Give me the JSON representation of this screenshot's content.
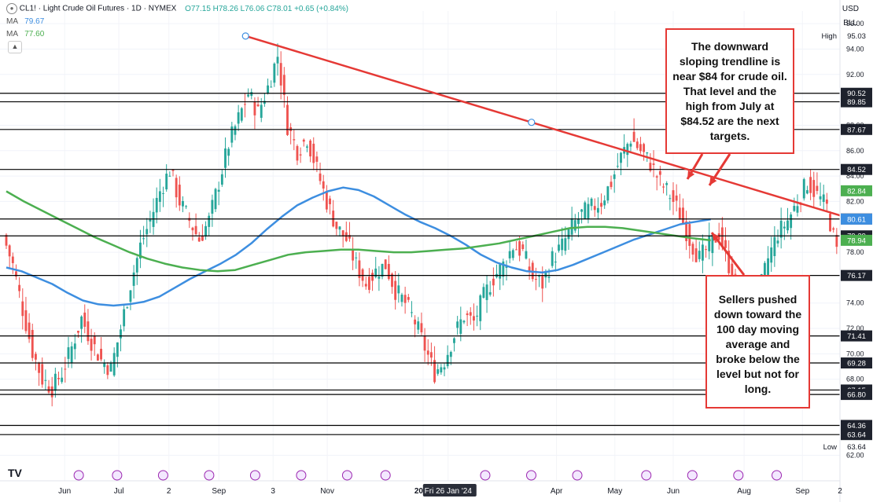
{
  "header": {
    "symbol": "CL1! · Light Crude Oil Futures · 1D · NYMEX",
    "ohlc": "O77.15 H78.26 L76.06 C78.01 +0.65 (+0.84%)",
    "ma1_label": "MA",
    "ma1_value": "79.67",
    "ma2_label": "MA",
    "ma2_value": "77.60"
  },
  "currency": "USD",
  "unit": "BLL",
  "collapse_icon": "chevron-up-icon",
  "colors": {
    "up": "#26a69a",
    "down": "#ef5350",
    "ma100": "#3d8ee0",
    "ma200": "#4caf50",
    "trendline": "#e53935",
    "level": "#000000"
  },
  "chart_data": {
    "type": "line",
    "ylim": [
      60,
      97
    ],
    "y_ticks": [
      "96.00",
      "94.00",
      "92.00",
      "88.00",
      "86.00",
      "84.00",
      "82.00",
      "78.00",
      "74.00",
      "72.00",
      "70.00",
      "68.00",
      "62.00"
    ],
    "x_ticks": [
      "Jun",
      "Jul",
      "2",
      "Sep",
      "3",
      "Nov",
      "2024",
      "Fri 26 Jan '24",
      "Apr",
      "May",
      "Jun",
      "Aug",
      "Sep",
      "2"
    ],
    "high_label": "High",
    "high_value": "95.03",
    "low_label": "Low",
    "low_value": "63.64",
    "levels": [
      {
        "label": "90.52",
        "value": 90.52,
        "box": "#1e222d"
      },
      {
        "label": "89.85",
        "value": 89.85,
        "box": "#1e222d"
      },
      {
        "label": "87.67",
        "value": 87.67,
        "box": "#1e222d"
      },
      {
        "label": "84.52",
        "value": 84.52,
        "box": "#1e222d"
      },
      {
        "label": "80.62",
        "value": 80.62,
        "box": "#1e222d"
      },
      {
        "label": "79.29",
        "value": 79.29,
        "box": "#1e222d"
      },
      {
        "label": "76.17",
        "value": 76.17,
        "box": "#1e222d"
      },
      {
        "label": "71.41",
        "value": 71.41,
        "box": "#1e222d"
      },
      {
        "label": "69.28",
        "value": 69.28,
        "box": "#1e222d"
      },
      {
        "label": "67.15",
        "value": 67.15,
        "box": "#1e222d"
      },
      {
        "label": "66.80",
        "value": 66.8,
        "box": "#1e222d"
      },
      {
        "label": "64.36",
        "value": 64.36,
        "box": "#1e222d"
      },
      {
        "label": "63.64",
        "value": 63.64,
        "box": "#1e222d"
      }
    ],
    "price_boxes": [
      {
        "label": "82.84",
        "value": 82.84,
        "color": "#4caf50"
      },
      {
        "label": "80.61",
        "value": 80.61,
        "color": "#3d8ee0"
      },
      {
        "label": "78.94",
        "value": 78.94,
        "color": "#4caf50"
      }
    ],
    "close_path": [
      79.3,
      77.0,
      73.5,
      70.2,
      68.0,
      67.3,
      68.5,
      70.5,
      72.8,
      71.0,
      69.5,
      68.8,
      72.0,
      75.5,
      78.5,
      80.5,
      82.8,
      84.5,
      82.0,
      80.5,
      79.0,
      80.5,
      83.5,
      86.5,
      88.5,
      90.5,
      89.0,
      91.0,
      93.5,
      88.0,
      86.0,
      87.0,
      84.5,
      82.0,
      80.0,
      79.0,
      77.0,
      75.5,
      76.5,
      77.0,
      75.0,
      74.0,
      72.5,
      70.5,
      68.5,
      69.5,
      71.5,
      73.0,
      72.5,
      74.5,
      76.0,
      77.0,
      78.5,
      78.0,
      76.0,
      75.5,
      77.5,
      78.5,
      80.0,
      81.0,
      81.5,
      82.0,
      83.5,
      85.5,
      87.0,
      86.0,
      85.0,
      83.5,
      82.5,
      81.0,
      79.0,
      77.5,
      78.5,
      79.5,
      77.0,
      75.0,
      73.5,
      74.5,
      77.5,
      79.5,
      80.5,
      82.0,
      83.5,
      82.5,
      81.5,
      78.0
    ],
    "ma100": [
      76.8,
      76.5,
      76.0,
      75.5,
      74.8,
      74.2,
      73.9,
      73.8,
      73.9,
      74.1,
      74.5,
      75.2,
      75.9,
      76.5,
      77.1,
      77.8,
      78.7,
      79.8,
      80.8,
      81.7,
      82.3,
      82.8,
      83.1,
      82.9,
      82.4,
      81.7,
      81.0,
      80.4,
      79.9,
      79.3,
      78.6,
      77.8,
      77.2,
      76.8,
      76.5,
      76.4,
      76.6,
      77.0,
      77.5,
      78.0,
      78.5,
      79.0,
      79.4,
      79.8,
      80.2,
      80.4,
      80.6
    ],
    "ma200": [
      82.8,
      82.0,
      81.3,
      80.6,
      79.9,
      79.2,
      78.6,
      78.0,
      77.5,
      77.1,
      76.8,
      76.6,
      76.5,
      76.6,
      77.0,
      77.4,
      77.8,
      78.0,
      78.1,
      78.2,
      78.2,
      78.1,
      78.0,
      78.0,
      78.1,
      78.2,
      78.3,
      78.5,
      78.7,
      79.0,
      79.3,
      79.6,
      79.9,
      80.0,
      80.0,
      79.9,
      79.7,
      79.5,
      79.3,
      79.1,
      78.94
    ],
    "trendline": {
      "from": [
        0.287,
        95.03
      ],
      "to": [
        1.0,
        80.9
      ]
    },
    "annotations": [
      "The downward sloping trendline is near $84 for crude oil. That level and the high from July at $84.52 are the next targets.",
      "Sellers pushed down toward the 100 day moving average and broke below the level but not for long."
    ]
  }
}
